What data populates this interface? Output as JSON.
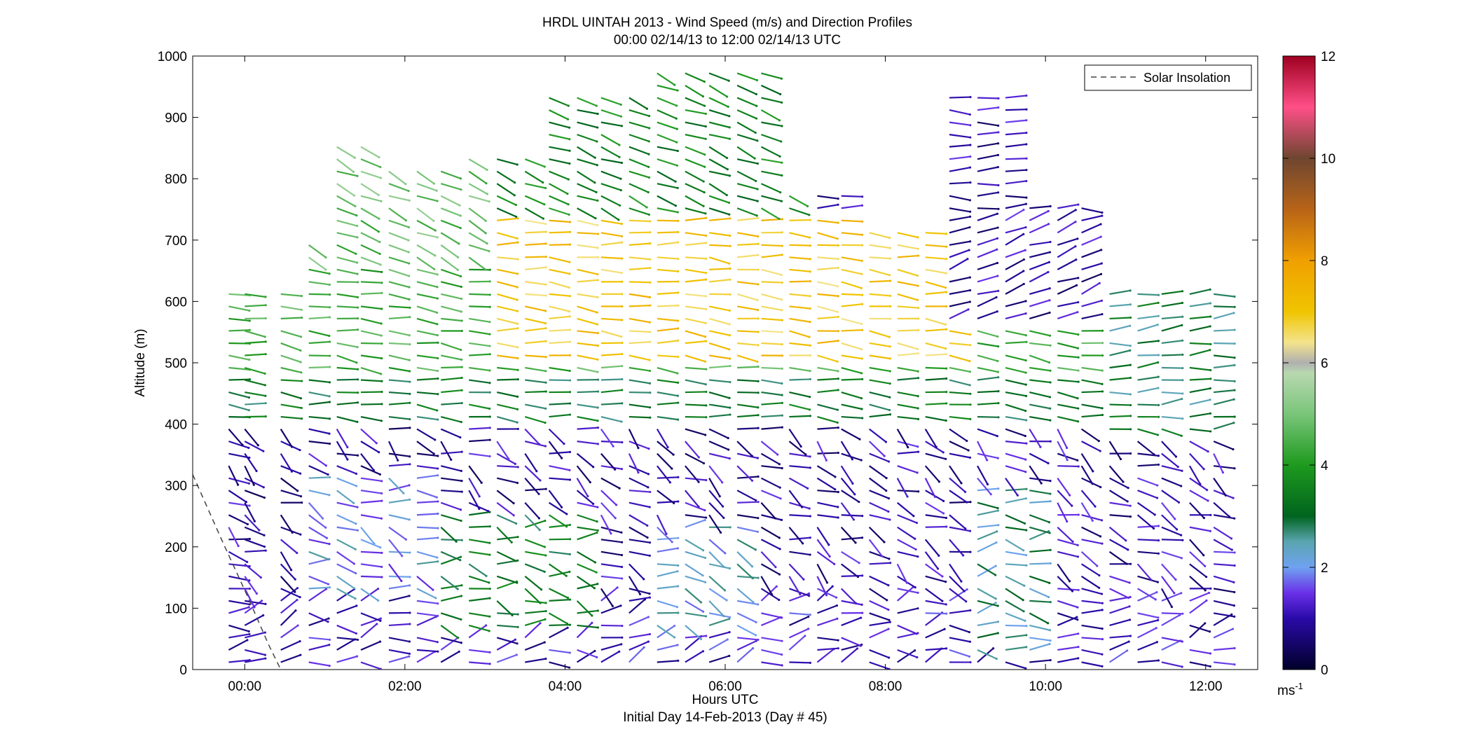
{
  "chart_data": {
    "type": "scatter",
    "title": "HRDL UINTAH 2013 - Wind Speed (m/s) and Direction Profiles",
    "subtitle": "00:00 02/14/13 to 12:00 02/14/13  UTC",
    "xlabel": "Hours UTC",
    "xlabel2": "Initial Day 14-Feb-2013 (Day # 45)",
    "ylabel": "Altitude (m)",
    "xlim": [
      -0.65,
      12.65
    ],
    "ylim": [
      0,
      1000
    ],
    "xticks": [
      0,
      2,
      4,
      6,
      8,
      10,
      12
    ],
    "xtick_labels": [
      "00:00",
      "02:00",
      "04:00",
      "06:00",
      "08:00",
      "10:00",
      "12:00"
    ],
    "yticks": [
      0,
      100,
      200,
      300,
      400,
      500,
      600,
      700,
      800,
      900,
      1000
    ],
    "ytick_labels": [
      "0",
      "100",
      "200",
      "300",
      "400",
      "500",
      "600",
      "700",
      "800",
      "900",
      "1000"
    ],
    "legend": {
      "placement": "top-right",
      "entries": [
        "Solar Insolation"
      ]
    },
    "colorbar": {
      "unit_label": "ms",
      "unit_exponent": "-1",
      "range": [
        0,
        12
      ],
      "ticks": [
        0,
        2,
        4,
        6,
        8,
        10,
        12
      ],
      "tick_labels": [
        "0",
        "2",
        "4",
        "6",
        "8",
        "10",
        "12"
      ],
      "color_stops": [
        {
          "value": 0,
          "color": "#00002a"
        },
        {
          "value": 1,
          "color": "#2a0aa8"
        },
        {
          "value": 1.5,
          "color": "#6a30e8"
        },
        {
          "value": 2,
          "color": "#6fa2f0"
        },
        {
          "value": 2.5,
          "color": "#5aa5b0"
        },
        {
          "value": 3,
          "color": "#00641e"
        },
        {
          "value": 4,
          "color": "#1e9a1e"
        },
        {
          "value": 5,
          "color": "#7ac57a"
        },
        {
          "value": 5.8,
          "color": "#b8d8b0"
        },
        {
          "value": 6,
          "color": "#b0b0b0"
        },
        {
          "value": 6.4,
          "color": "#f4e48c"
        },
        {
          "value": 7,
          "color": "#f0c400"
        },
        {
          "value": 8,
          "color": "#f0a000"
        },
        {
          "value": 9,
          "color": "#b86418"
        },
        {
          "value": 10,
          "color": "#6e4630"
        },
        {
          "value": 11,
          "color": "#ff4f88"
        },
        {
          "value": 12,
          "color": "#9e0020"
        }
      ]
    },
    "solar_insolation": [
      [
        -0.65,
        318
      ],
      [
        -0.3,
        215
      ],
      [
        0.05,
        115
      ],
      [
        0.3,
        40
      ],
      [
        0.45,
        0
      ]
    ],
    "profile_times": [
      -0.2,
      0.0,
      0.45,
      0.8,
      1.15,
      1.45,
      1.8,
      2.15,
      2.45,
      2.8,
      3.15,
      3.5,
      3.8,
      4.15,
      4.45,
      4.8,
      5.15,
      5.5,
      5.8,
      6.15,
      6.45,
      6.8,
      7.15,
      7.45,
      7.8,
      8.15,
      8.5,
      8.8,
      9.15,
      9.5,
      9.8,
      10.15,
      10.45,
      10.8,
      11.15,
      11.45,
      11.8,
      12.1
    ],
    "profile_bands": [
      {
        "x0": -0.65,
        "x1": 12.65,
        "y0": 0,
        "y1": 130,
        "speed": 1.2,
        "dir": 260
      },
      {
        "x0": -0.65,
        "x1": 12.65,
        "y0": 130,
        "y1": 400,
        "speed": 1.0,
        "dir": 300
      },
      {
        "x0": 0.8,
        "x1": 2.3,
        "y0": 130,
        "y1": 330,
        "speed": 2.0,
        "dir": 290
      },
      {
        "x0": 2.4,
        "x1": 4.4,
        "y0": 60,
        "y1": 270,
        "speed": 3.2,
        "dir": 285
      },
      {
        "x0": 5.0,
        "x1": 6.3,
        "y0": 60,
        "y1": 240,
        "speed": 2.2,
        "dir": 285
      },
      {
        "x0": 9.0,
        "x1": 9.9,
        "y0": 20,
        "y1": 300,
        "speed": 2.6,
        "dir": 275
      },
      {
        "x0": -0.65,
        "x1": 12.65,
        "y0": 400,
        "y1": 480,
        "speed": 3.2,
        "dir": 275
      },
      {
        "x0": -0.65,
        "x1": 12.65,
        "y0": 480,
        "y1": 660,
        "speed": 4.4,
        "dir": 278
      },
      {
        "x0": 3.0,
        "x1": 9.0,
        "y0": 500,
        "y1": 740,
        "speed": 7.0,
        "dir": 275
      },
      {
        "x0": 0.8,
        "x1": 3.0,
        "y0": 660,
        "y1": 860,
        "speed": 4.8,
        "dir": 295
      },
      {
        "x0": 3.0,
        "x1": 7.0,
        "y0": 740,
        "y1": 990,
        "speed": 3.6,
        "dir": 292
      },
      {
        "x0": 8.8,
        "x1": 10.8,
        "y0": 560,
        "y1": 750,
        "speed": 1.0,
        "dir": 250
      },
      {
        "x0": 10.8,
        "x1": 12.1,
        "y0": 380,
        "y1": 630,
        "speed": 3.0,
        "dir": 265
      }
    ]
  }
}
